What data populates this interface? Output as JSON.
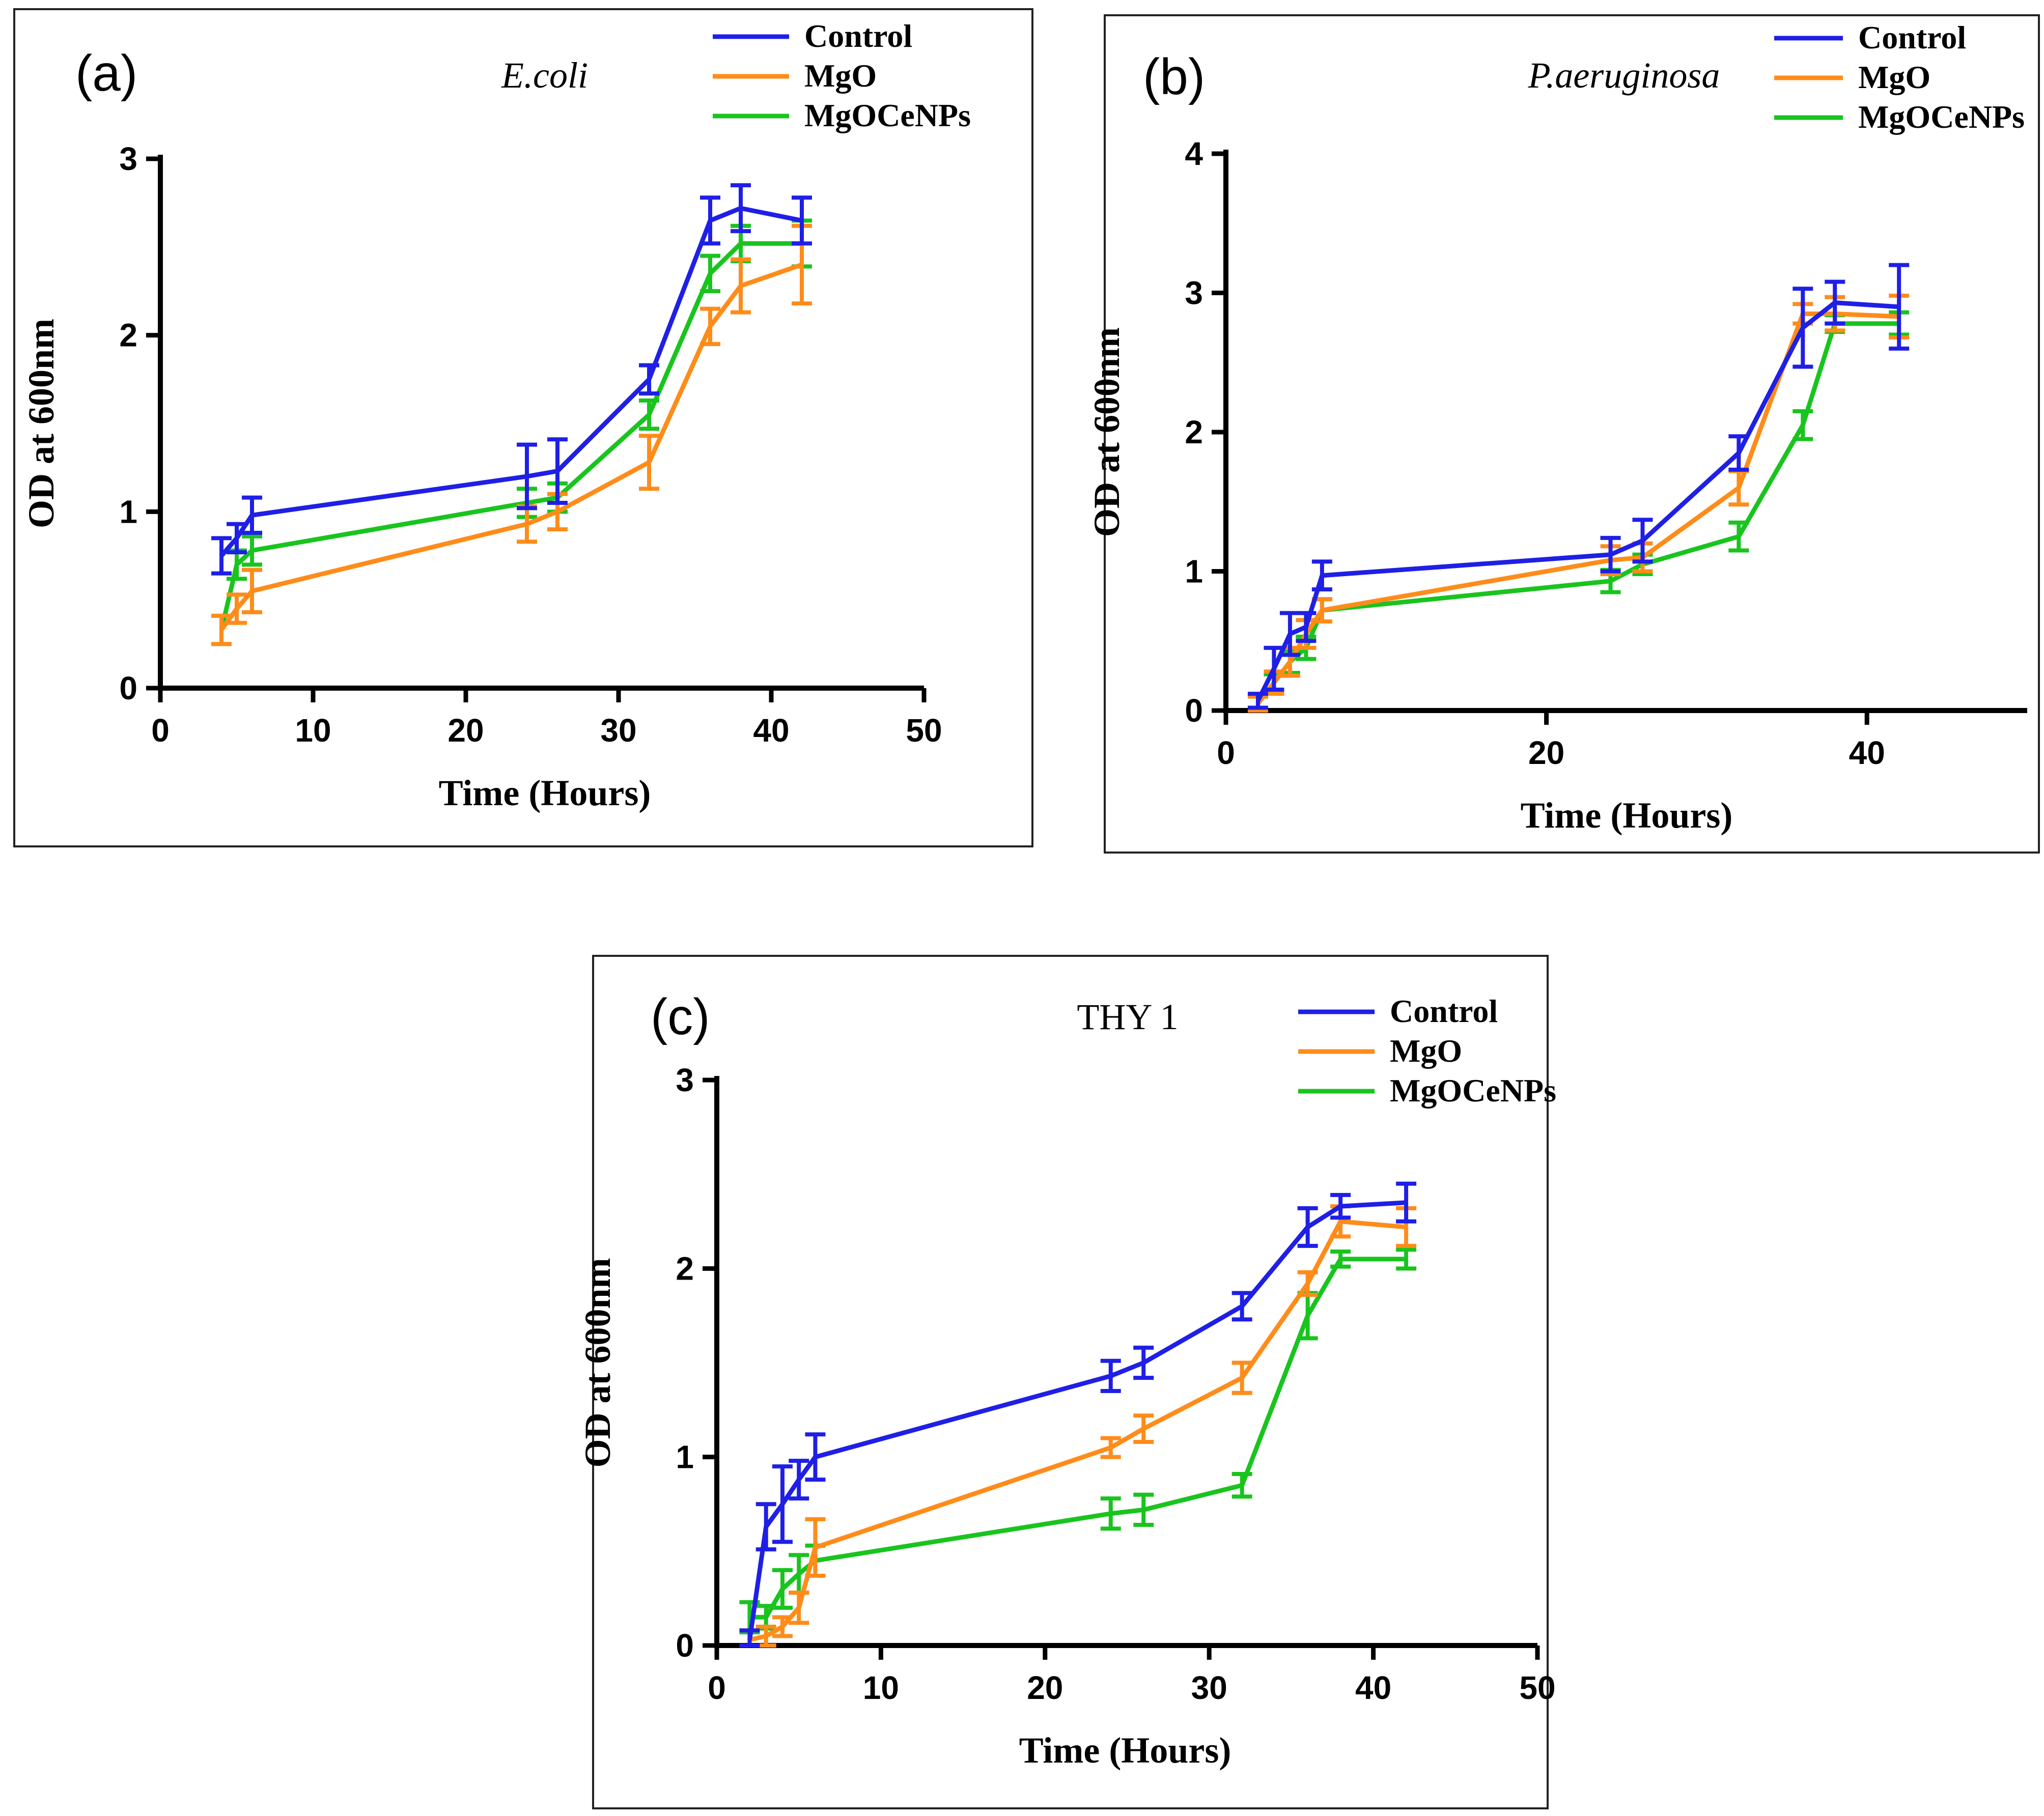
{
  "chart_data": [
    {
      "id": "a",
      "type": "line",
      "panel_label": "(a)",
      "title": "E.coli",
      "title_italic": true,
      "xlabel": "Time (Hours)",
      "ylabel": "OD at 600nm",
      "xlim": [
        0,
        50
      ],
      "ylim": [
        0,
        3
      ],
      "xticks": [
        0,
        10,
        20,
        30,
        40,
        50
      ],
      "yticks": [
        0,
        1,
        2,
        3
      ],
      "x": [
        4,
        5,
        6,
        24,
        26,
        32,
        36,
        38,
        42
      ],
      "series": [
        {
          "name": "Control",
          "color": "#1f1fe6",
          "values": [
            0.75,
            0.85,
            0.98,
            1.2,
            1.23,
            1.75,
            2.65,
            2.72,
            2.65
          ],
          "errors": [
            0.1,
            0.08,
            0.1,
            0.18,
            0.18,
            0.08,
            0.13,
            0.13,
            0.13
          ]
        },
        {
          "name": "MgO",
          "color": "#ff8c1a",
          "values": [
            0.33,
            0.45,
            0.55,
            0.93,
            1.0,
            1.28,
            2.05,
            2.28,
            2.4
          ],
          "errors": [
            0.08,
            0.08,
            0.12,
            0.1,
            0.1,
            0.15,
            0.1,
            0.15,
            0.22
          ]
        },
        {
          "name": "MgOCeNPs",
          "color": "#19c41e",
          "values": [
            0.33,
            0.7,
            0.78,
            1.05,
            1.08,
            1.55,
            2.35,
            2.52,
            2.52
          ],
          "errors": [
            0.08,
            0.08,
            0.08,
            0.08,
            0.08,
            0.08,
            0.1,
            0.1,
            0.13
          ]
        }
      ]
    },
    {
      "id": "b",
      "type": "line",
      "panel_label": "(b)",
      "title": "P.aeruginosa",
      "title_italic": true,
      "xlabel": "Time (Hours)",
      "ylabel": "OD at 600nm",
      "xlim": [
        0,
        50
      ],
      "ylim": [
        0,
        4
      ],
      "xticks": [
        0,
        20,
        40
      ],
      "yticks": [
        0,
        1,
        2,
        3,
        4
      ],
      "x": [
        2,
        3,
        4,
        5,
        6,
        24,
        26,
        32,
        36,
        38,
        42
      ],
      "series": [
        {
          "name": "Control",
          "color": "#1f1fe6",
          "values": [
            0.07,
            0.3,
            0.55,
            0.6,
            0.97,
            1.12,
            1.22,
            1.85,
            2.75,
            2.93,
            2.9
          ],
          "errors": [
            0.05,
            0.15,
            0.15,
            0.1,
            0.1,
            0.12,
            0.15,
            0.12,
            0.28,
            0.15,
            0.3
          ]
        },
        {
          "name": "MgO",
          "color": "#ff8c1a",
          "values": [
            0.05,
            0.2,
            0.35,
            0.55,
            0.72,
            1.08,
            1.1,
            1.6,
            2.85,
            2.85,
            2.83
          ],
          "errors": [
            0.05,
            0.08,
            0.1,
            0.1,
            0.08,
            0.1,
            0.1,
            0.12,
            0.07,
            0.12,
            0.15
          ]
        },
        {
          "name": "MgOCeNPs",
          "color": "#19c41e",
          "values": [
            0.05,
            0.2,
            0.35,
            0.45,
            0.72,
            0.93,
            1.05,
            1.25,
            2.05,
            2.78,
            2.78
          ],
          "errors": [
            0.05,
            0.06,
            0.08,
            0.08,
            0.08,
            0.08,
            0.07,
            0.1,
            0.1,
            0.06,
            0.08
          ]
        }
      ]
    },
    {
      "id": "c",
      "type": "line",
      "panel_label": "(c)",
      "title": "THY 1",
      "title_italic": false,
      "xlabel": "Time (Hours)",
      "ylabel": "OD at 600nm",
      "xlim": [
        0,
        50
      ],
      "ylim": [
        0,
        3
      ],
      "xticks": [
        0,
        10,
        20,
        30,
        40,
        50
      ],
      "yticks": [
        0,
        1,
        2,
        3
      ],
      "x": [
        2,
        3,
        4,
        5,
        6,
        24,
        26,
        32,
        36,
        38,
        42
      ],
      "series": [
        {
          "name": "Control",
          "color": "#1f1fe6",
          "values": [
            0.03,
            0.63,
            0.75,
            0.88,
            1.0,
            1.43,
            1.5,
            1.8,
            2.22,
            2.33,
            2.35
          ],
          "errors": [
            0.05,
            0.12,
            0.2,
            0.1,
            0.12,
            0.08,
            0.08,
            0.07,
            0.1,
            0.06,
            0.1
          ]
        },
        {
          "name": "MgO",
          "color": "#ff8c1a",
          "values": [
            0.03,
            0.05,
            0.1,
            0.2,
            0.52,
            1.05,
            1.15,
            1.42,
            1.92,
            2.25,
            2.22
          ],
          "errors": [
            0.05,
            0.05,
            0.05,
            0.08,
            0.15,
            0.05,
            0.07,
            0.08,
            0.06,
            0.08,
            0.1
          ]
        },
        {
          "name": "MgOCeNPs",
          "color": "#19c41e",
          "values": [
            0.15,
            0.15,
            0.3,
            0.38,
            0.45,
            0.7,
            0.72,
            0.85,
            1.75,
            2.05,
            2.05
          ],
          "errors": [
            0.08,
            0.06,
            0.1,
            0.1,
            0.08,
            0.08,
            0.08,
            0.06,
            0.12,
            0.04,
            0.05
          ]
        }
      ]
    }
  ]
}
